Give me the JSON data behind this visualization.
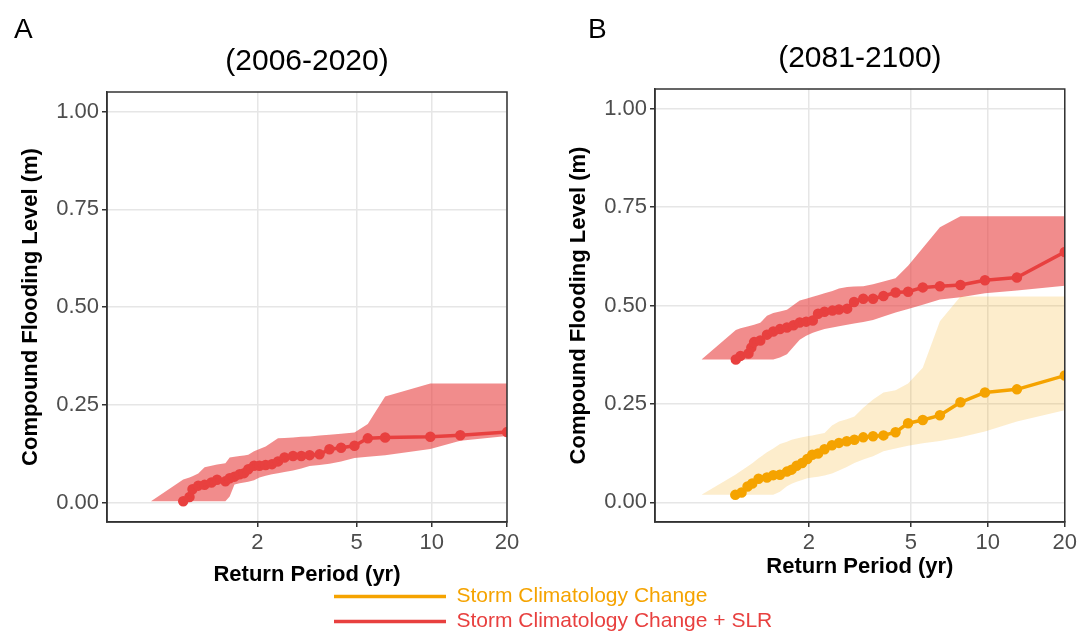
{
  "chart_data": [
    {
      "type": "line",
      "title": "(2006-2020)",
      "annotations": [
        "A"
      ],
      "xlabel": "Return Period (yr)",
      "ylabel": "Compound Flooding Level (m)",
      "log": "x",
      "grid": true,
      "marker": "circle",
      "xlim": [
        0.5,
        20
      ],
      "xticks": [
        2,
        5,
        10,
        20
      ],
      "ylim": [
        -0.05,
        1.05
      ],
      "yticks": [
        {
          "value": 0,
          "label": "0.00"
        },
        {
          "value": 0.25,
          "label": "0.25"
        },
        {
          "value": 0.5,
          "label": "0.50"
        },
        {
          "value": 0.75,
          "label": "0.75"
        },
        {
          "value": 1,
          "label": "1.00"
        }
      ],
      "series": [
        {
          "type": "line",
          "color": "#e8403f",
          "x": [
            0.75,
            1.01,
            1.07,
            1.1,
            1.16,
            1.23,
            1.31,
            1.38,
            1.49,
            1.55,
            1.62,
            1.7,
            1.77,
            1.84,
            1.94,
            2.04,
            2.16,
            2.29,
            2.42,
            2.57,
            2.78,
            3.0,
            3.24,
            3.55,
            3.89,
            4.33,
            4.9,
            5.54,
            6.5,
            9.86,
            13.0,
            20
          ],
          "values": [
            null,
            0.003,
            0.014,
            0.034,
            0.043,
            0.045,
            0.051,
            0.058,
            0.054,
            0.062,
            0.066,
            0.072,
            0.075,
            0.085,
            0.094,
            0.094,
            0.096,
            0.098,
            0.105,
            0.115,
            0.119,
            0.119,
            0.121,
            0.123,
            0.136,
            0.14,
            0.145,
            0.164,
            0.166,
            0.168,
            0.172,
            0.18
          ],
          "upper": [
            0.003,
            0.059,
            0.064,
            0.067,
            0.074,
            0.09,
            0.094,
            0.097,
            0.1,
            0.115,
            0.117,
            0.119,
            0.12,
            0.122,
            0.131,
            0.137,
            0.143,
            0.154,
            0.164,
            0.165,
            0.166,
            0.168,
            0.169,
            0.171,
            0.173,
            0.176,
            0.179,
            0.201,
            0.271,
            0.304,
            0.304,
            0.304
          ],
          "lower": [
            0.003,
            0.003,
            0.003,
            0.003,
            0.003,
            0.003,
            0.003,
            0.003,
            0.003,
            0.015,
            0.046,
            0.049,
            0.051,
            0.053,
            0.057,
            0.064,
            0.068,
            0.072,
            0.075,
            0.078,
            0.082,
            0.087,
            0.093,
            0.096,
            0.099,
            0.105,
            0.114,
            0.117,
            0.121,
            0.137,
            0.158,
            0.17
          ]
        }
      ]
    },
    {
      "type": "line",
      "title": "(2081-2100)",
      "annotations": [
        "B"
      ],
      "xlabel": "Return Period (yr)",
      "ylabel": "Compound Flooding Level (m)",
      "log": "x",
      "grid": true,
      "marker": "circle",
      "legend": "bottom",
      "xlim": [
        0.5,
        20
      ],
      "xticks": [
        2,
        5,
        10,
        20
      ],
      "ylim": [
        -0.05,
        1.05
      ],
      "yticks": [
        {
          "value": 0,
          "label": "0.00"
        },
        {
          "value": 0.25,
          "label": "0.25"
        },
        {
          "value": 0.5,
          "label": "0.50"
        },
        {
          "value": 0.75,
          "label": "0.75"
        },
        {
          "value": 1,
          "label": "1.00"
        }
      ],
      "series": [
        {
          "type": "line",
          "name": "Storm Climatology Change",
          "color": "#f5a300",
          "x": [
            0.76,
            1.03,
            1.09,
            1.15,
            1.2,
            1.27,
            1.37,
            1.45,
            1.54,
            1.64,
            1.71,
            1.79,
            1.88,
            1.97,
            2.06,
            2.17,
            2.3,
            2.46,
            2.62,
            2.81,
            3.01,
            3.26,
            3.56,
            3.91,
            4.36,
            4.88,
            5.57,
            6.5,
            7.82,
            9.75,
            13.0,
            20
          ],
          "values": [
            null,
            0.019,
            0.025,
            0.04,
            0.048,
            0.06,
            0.063,
            0.069,
            0.07,
            0.078,
            0.083,
            0.093,
            0.1,
            0.11,
            0.121,
            0.124,
            0.135,
            0.145,
            0.151,
            0.155,
            0.159,
            0.165,
            0.168,
            0.17,
            0.178,
            0.201,
            0.209,
            0.221,
            0.254,
            0.279,
            0.287,
            0.322
          ],
          "upper": [
            0.019,
            0.07,
            0.081,
            0.091,
            0.099,
            0.112,
            0.127,
            0.137,
            0.148,
            0.154,
            0.159,
            0.162,
            0.165,
            0.168,
            0.17,
            0.173,
            0.176,
            0.195,
            0.205,
            0.211,
            0.218,
            0.24,
            0.261,
            0.279,
            0.285,
            0.302,
            0.342,
            0.46,
            0.523,
            0.523,
            0.523,
            0.523
          ],
          "lower": [
            0.019,
            0.019,
            0.019,
            0.019,
            0.019,
            0.019,
            0.019,
            0.019,
            0.027,
            0.041,
            0.047,
            0.052,
            0.057,
            0.061,
            0.063,
            0.065,
            0.068,
            0.073,
            0.081,
            0.09,
            0.1,
            0.109,
            0.117,
            0.13,
            0.137,
            0.144,
            0.15,
            0.156,
            0.165,
            0.18,
            0.205,
            0.234
          ]
        },
        {
          "type": "line",
          "name": "Storm Climatology Change + SLR",
          "color": "#e8403f",
          "x": [
            0.76,
            1.035,
            1.08,
            1.16,
            1.19,
            1.22,
            1.29,
            1.37,
            1.45,
            1.54,
            1.64,
            1.74,
            1.84,
            1.95,
            2.07,
            2.17,
            2.3,
            2.47,
            2.62,
            2.82,
            3.0,
            3.26,
            3.56,
            3.91,
            4.36,
            4.88,
            5.57,
            6.5,
            7.82,
            9.75,
            13.0,
            20
          ],
          "values": [
            null,
            0.363,
            0.372,
            0.378,
            0.393,
            0.407,
            0.411,
            0.426,
            0.434,
            0.44,
            0.444,
            0.45,
            0.457,
            0.459,
            0.462,
            0.479,
            0.484,
            0.487,
            0.49,
            0.492,
            0.509,
            0.517,
            0.517,
            0.524,
            0.533,
            0.535,
            0.546,
            0.549,
            0.552,
            0.564,
            0.571,
            0.636
          ],
          "upper": [
            0.363,
            0.438,
            0.442,
            0.447,
            0.449,
            0.451,
            0.456,
            0.474,
            0.481,
            0.485,
            0.489,
            0.501,
            0.513,
            0.517,
            0.522,
            0.526,
            0.531,
            0.537,
            0.543,
            0.547,
            0.548,
            0.549,
            0.554,
            0.561,
            0.569,
            0.601,
            0.646,
            0.699,
            0.727,
            0.727,
            0.727,
            0.727
          ],
          "lower": [
            0.363,
            0.363,
            0.363,
            0.363,
            0.363,
            0.363,
            0.363,
            0.363,
            0.363,
            0.368,
            0.376,
            0.395,
            0.413,
            0.423,
            0.431,
            0.435,
            0.44,
            0.444,
            0.447,
            0.451,
            0.454,
            0.458,
            0.463,
            0.472,
            0.482,
            0.491,
            0.502,
            0.515,
            0.521,
            0.531,
            0.538,
            0.55
          ]
        }
      ]
    }
  ]
}
